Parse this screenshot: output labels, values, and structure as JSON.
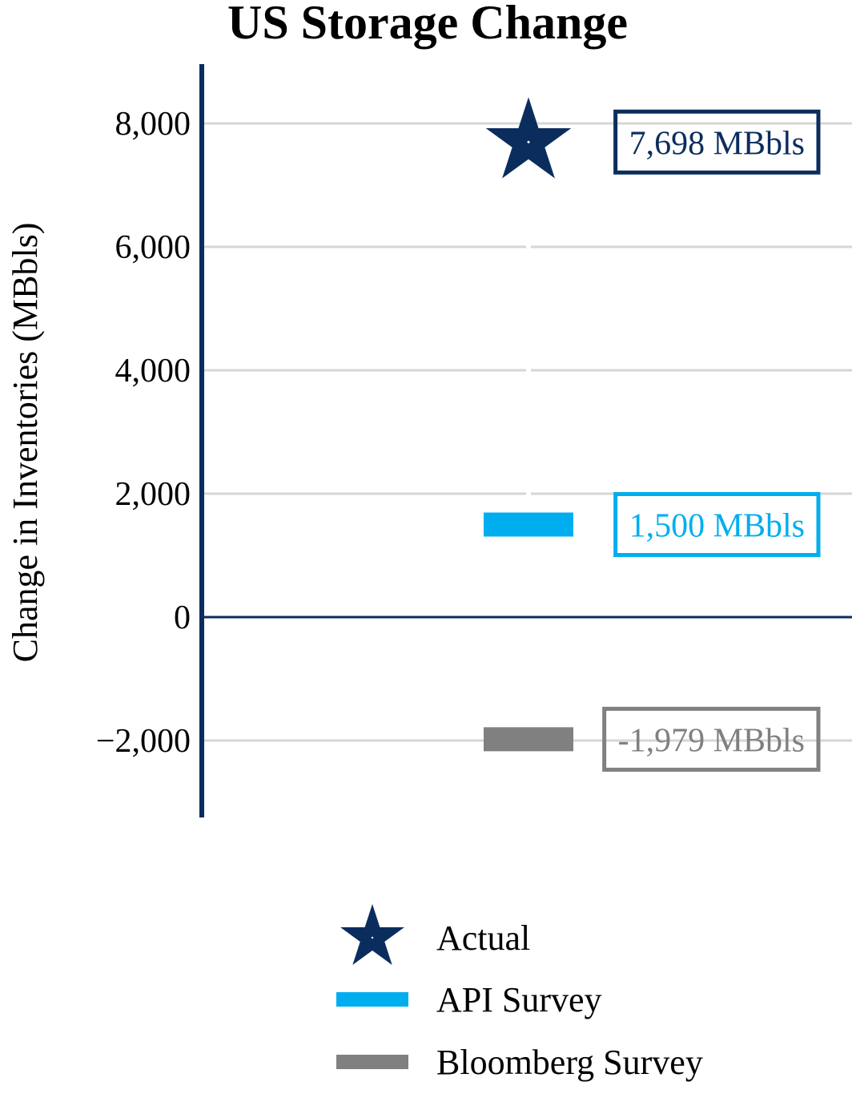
{
  "chart_data": {
    "type": "scatter",
    "title": "US Storage Change",
    "xlabel": "",
    "ylabel": "Change in Inventories (MBbls)",
    "ylim": [
      -3200,
      8900
    ],
    "yticks": [
      -2000,
      0,
      2000,
      4000,
      6000,
      8000
    ],
    "ytick_labels": [
      "−2,000",
      "0",
      "2,000",
      "4,000",
      "6,000",
      "8,000"
    ],
    "grid": true,
    "legend_position": "bottom",
    "series": [
      {
        "name": "Actual",
        "marker": "star",
        "color": "#0b2d5e",
        "value": 7698,
        "label": "7,698 MBbls"
      },
      {
        "name": "API Survey",
        "marker": "bar",
        "color": "#00aeef",
        "value": 1500,
        "label": "1,500 MBbls"
      },
      {
        "name": "Bloomberg Survey",
        "marker": "bar",
        "color": "#808080",
        "value": -1979,
        "label": "-1,979 MBbls"
      }
    ]
  }
}
